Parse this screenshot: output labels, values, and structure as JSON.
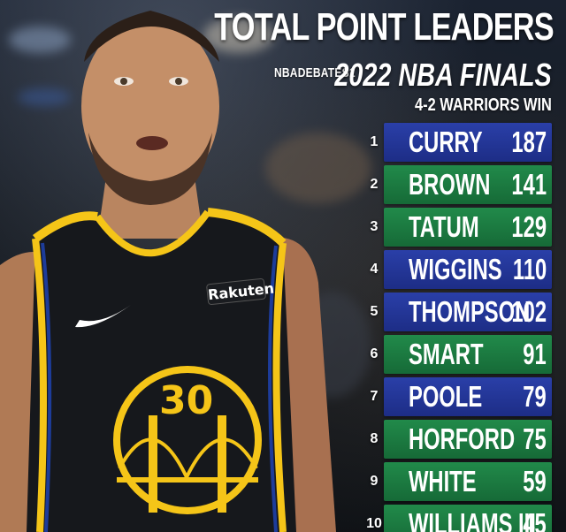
{
  "header": {
    "title": "TOTAL POINT LEADERS",
    "handle": "NBADEBATES1",
    "subtitle": "2022 NBA FINALS",
    "result": "4-2 WARRIORS WIN"
  },
  "jersey": {
    "number": "30",
    "sponsor": "Rakuten"
  },
  "colors": {
    "blue_bar": "#1d2d86",
    "green_bar": "#166a37",
    "jersey": "#16181c",
    "gold": "#f5c518",
    "trim_blue": "#1d3c9a"
  },
  "leaders": [
    {
      "rank": "1",
      "name": "CURRY",
      "points": "187",
      "team_color": "blue"
    },
    {
      "rank": "2",
      "name": "BROWN",
      "points": "141",
      "team_color": "green"
    },
    {
      "rank": "3",
      "name": "TATUM",
      "points": "129",
      "team_color": "green"
    },
    {
      "rank": "4",
      "name": "WIGGINS",
      "points": "110",
      "team_color": "blue"
    },
    {
      "rank": "5",
      "name": "THOMPSON",
      "points": "102",
      "team_color": "blue"
    },
    {
      "rank": "6",
      "name": "SMART",
      "points": "91",
      "team_color": "green"
    },
    {
      "rank": "7",
      "name": "POOLE",
      "points": "79",
      "team_color": "blue"
    },
    {
      "rank": "8",
      "name": "HORFORD",
      "points": "75",
      "team_color": "green"
    },
    {
      "rank": "9",
      "name": "WHITE",
      "points": "59",
      "team_color": "green"
    },
    {
      "rank": "10",
      "name": "WILLIAMS III",
      "points": "45",
      "team_color": "green"
    }
  ]
}
